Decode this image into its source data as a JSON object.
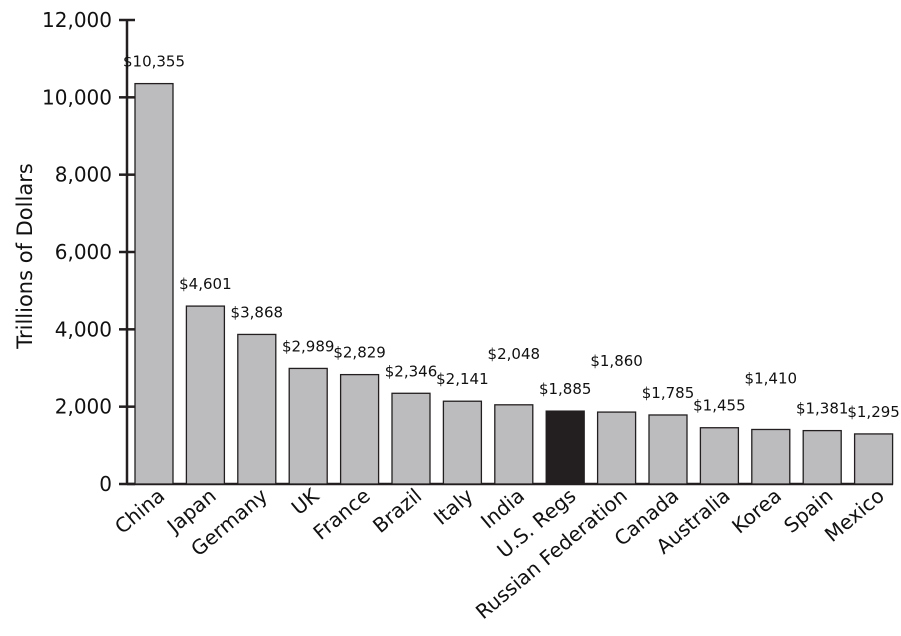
{
  "chart_data": {
    "type": "bar",
    "title": "",
    "xlabel": "",
    "ylabel": "Trillions of Dollars",
    "ylim": [
      0,
      12000
    ],
    "yticks": [
      0,
      2000,
      4000,
      6000,
      8000,
      10000,
      12000
    ],
    "ytick_labels": [
      "0",
      "2,000",
      "4,000",
      "6,000",
      "8,000",
      "10,000",
      "12,000"
    ],
    "categories": [
      "China",
      "Japan",
      "Germany",
      "UK",
      "France",
      "Brazil",
      "Italy",
      "India",
      "U.S. Regs",
      "Russian Federation",
      "Canada",
      "Australia",
      "Korea",
      "Spain",
      "Mexico"
    ],
    "values": [
      10355,
      4601,
      3868,
      2989,
      2829,
      2346,
      2141,
      2048,
      1885,
      1860,
      1785,
      1455,
      1410,
      1381,
      1295
    ],
    "value_labels": [
      "$10,355",
      "$4,601",
      "$3,868",
      "$2,989",
      "$2,829",
      "$2,346",
      "$2,141",
      "$2,048",
      "$1,885",
      "$1,860",
      "$1,785",
      "$1,455",
      "$1,410",
      "$1,381",
      "$1,295"
    ],
    "highlight_index": 8,
    "colors": {
      "bar": "#bcbcbe",
      "highlight": "#231f20",
      "outline": "#231f20"
    },
    "grid": false,
    "legend": "none"
  }
}
